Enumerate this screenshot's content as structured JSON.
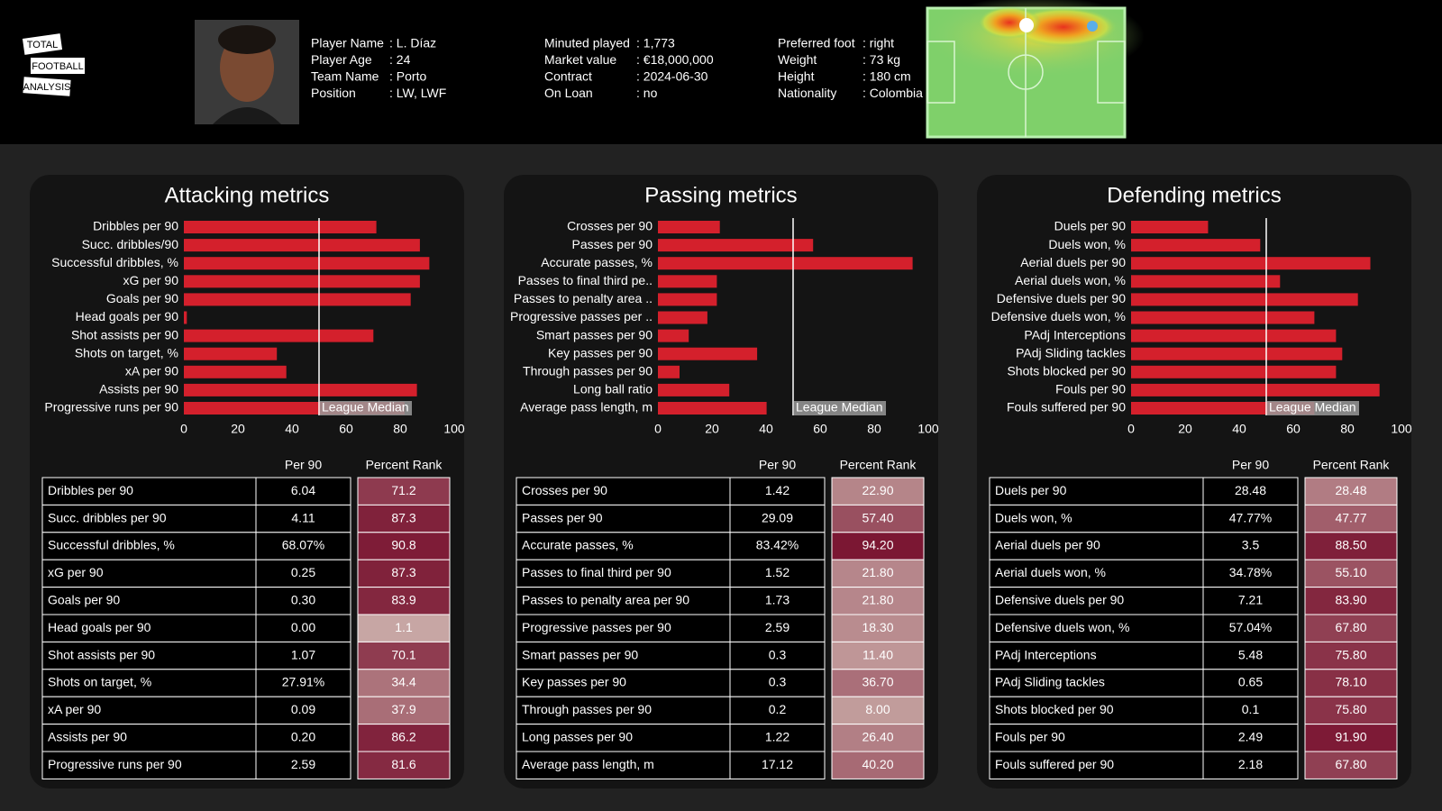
{
  "header": {
    "logo": [
      "TOTAL",
      "FOOTBALL",
      "ANALYSIS"
    ],
    "info": [
      [
        [
          "Player Name",
          ": L. Díaz"
        ],
        [
          "Player Age",
          ": 24"
        ],
        [
          "Team Name",
          ": Porto"
        ],
        [
          "Position",
          ": LW, LWF"
        ]
      ],
      [
        [
          "Minuted played",
          ": 1,773"
        ],
        [
          "Market value",
          ": €18,000,000"
        ],
        [
          "Contract",
          ": 2024-06-30"
        ],
        [
          "On Loan",
          ": no"
        ]
      ],
      [
        [
          "Preferred foot",
          ": right"
        ],
        [
          "Weight",
          ": 73 kg"
        ],
        [
          "Height",
          ": 180 cm"
        ],
        [
          "Nationality",
          ": Colombia"
        ]
      ]
    ]
  },
  "chart_data": [
    {
      "type": "bar",
      "orientation": "horizontal",
      "title": "Attacking metrics",
      "categories": [
        "Dribbles per 90",
        "Succ. dribbles/90",
        "Successful dribbles, %",
        "xG per 90",
        "Goals per 90",
        "Head goals per 90",
        "Shot assists per 90",
        "Shots on target, %",
        "xA per 90",
        "Assists per 90",
        "Progressive runs per 90"
      ],
      "values": [
        71.2,
        87.3,
        90.8,
        87.3,
        83.9,
        1.1,
        70.1,
        34.4,
        37.9,
        86.2,
        81.6
      ],
      "color": "#d4202c",
      "xlim": [
        0,
        100
      ],
      "xticks": [
        0,
        20,
        40,
        60,
        80,
        100
      ],
      "median": {
        "value": 50,
        "label": "League Median"
      }
    },
    {
      "type": "bar",
      "orientation": "horizontal",
      "title": "Passing metrics",
      "categories": [
        "Crosses per 90",
        "Passes per 90",
        "Accurate passes, %",
        "Passes to final third pe..",
        "Passes to penalty area ..",
        "Progressive passes per ..",
        "Smart passes per 90",
        "Key passes per 90",
        "Through passes per 90",
        "Long ball ratio",
        "Average pass length, m"
      ],
      "values": [
        22.9,
        57.4,
        94.2,
        21.8,
        21.8,
        18.3,
        11.4,
        36.7,
        8.0,
        26.4,
        40.2
      ],
      "color": "#d4202c",
      "xlim": [
        0,
        100
      ],
      "xticks": [
        0,
        20,
        40,
        60,
        80,
        100
      ],
      "median": {
        "value": 50,
        "label": "League Median"
      }
    },
    {
      "type": "bar",
      "orientation": "horizontal",
      "title": "Defending metrics",
      "categories": [
        "Duels per 90",
        "Duels won, %",
        "Aerial duels per 90",
        "Aerial duels won, %",
        "Defensive duels per 90",
        "Defensive duels won, %",
        "PAdj Interceptions",
        "PAdj Sliding tackles",
        "Shots blocked per 90",
        "Fouls per 90",
        "Fouls suffered per 90"
      ],
      "values": [
        28.48,
        47.77,
        88.5,
        55.1,
        83.9,
        67.8,
        75.8,
        78.1,
        75.8,
        91.9,
        67.8
      ],
      "color": "#d4202c",
      "xlim": [
        0,
        100
      ],
      "xticks": [
        0,
        20,
        40,
        60,
        80,
        100
      ],
      "median": {
        "value": 50,
        "label": "League Median"
      }
    }
  ],
  "tables": [
    {
      "columns": [
        "Per 90",
        "Percent Rank"
      ],
      "rows": [
        [
          "Dribbles per 90",
          "6.04",
          "71.2"
        ],
        [
          "Succ. dribbles per 90",
          "4.11",
          "87.3"
        ],
        [
          "Successful dribbles, %",
          "68.07%",
          "90.8"
        ],
        [
          "xG per 90",
          "0.25",
          "87.3"
        ],
        [
          "Goals per 90",
          "0.30",
          "83.9"
        ],
        [
          "Head goals per 90",
          "0.00",
          "1.1"
        ],
        [
          "Shot assists per 90",
          "1.07",
          "70.1"
        ],
        [
          "Shots on target, %",
          "27.91%",
          "34.4"
        ],
        [
          "xA per 90",
          "0.09",
          "37.9"
        ],
        [
          "Assists per 90",
          "0.20",
          "86.2"
        ],
        [
          "Progressive runs per 90",
          "2.59",
          "81.6"
        ]
      ]
    },
    {
      "columns": [
        "Per 90",
        "Percent Rank"
      ],
      "rows": [
        [
          "Crosses per 90",
          "1.42",
          "22.90"
        ],
        [
          "Passes per 90",
          "29.09",
          "57.40"
        ],
        [
          "Accurate passes, %",
          "83.42%",
          "94.20"
        ],
        [
          "Passes to final third per 90",
          "1.52",
          "21.80"
        ],
        [
          "Passes to penalty area per 90",
          "1.73",
          "21.80"
        ],
        [
          "Progressive passes per 90",
          "2.59",
          "18.30"
        ],
        [
          "Smart passes per 90",
          "0.3",
          "11.40"
        ],
        [
          "Key passes per 90",
          "0.3",
          "36.70"
        ],
        [
          "Through passes per 90",
          "0.2",
          "8.00"
        ],
        [
          "Long passes per 90",
          "1.22",
          "26.40"
        ],
        [
          "Average pass length, m",
          "17.12",
          "40.20"
        ]
      ]
    },
    {
      "columns": [
        "Per 90",
        "Percent Rank"
      ],
      "rows": [
        [
          "Duels per 90",
          "28.48",
          "28.48"
        ],
        [
          "Duels won, %",
          "47.77%",
          "47.77"
        ],
        [
          "Aerial duels per 90",
          "3.5",
          "88.50"
        ],
        [
          "Aerial duels won, %",
          "34.78%",
          "55.10"
        ],
        [
          "Defensive duels per 90",
          "7.21",
          "83.90"
        ],
        [
          "Defensive duels won, %",
          "57.04%",
          "67.80"
        ],
        [
          "PAdj Interceptions",
          "5.48",
          "75.80"
        ],
        [
          "PAdj Sliding tackles",
          "0.65",
          "78.10"
        ],
        [
          "Shots blocked per 90",
          "0.1",
          "75.80"
        ],
        [
          "Fouls per 90",
          "2.49",
          "91.90"
        ],
        [
          "Fouls suffered per 90",
          "2.18",
          "67.80"
        ]
      ]
    }
  ]
}
